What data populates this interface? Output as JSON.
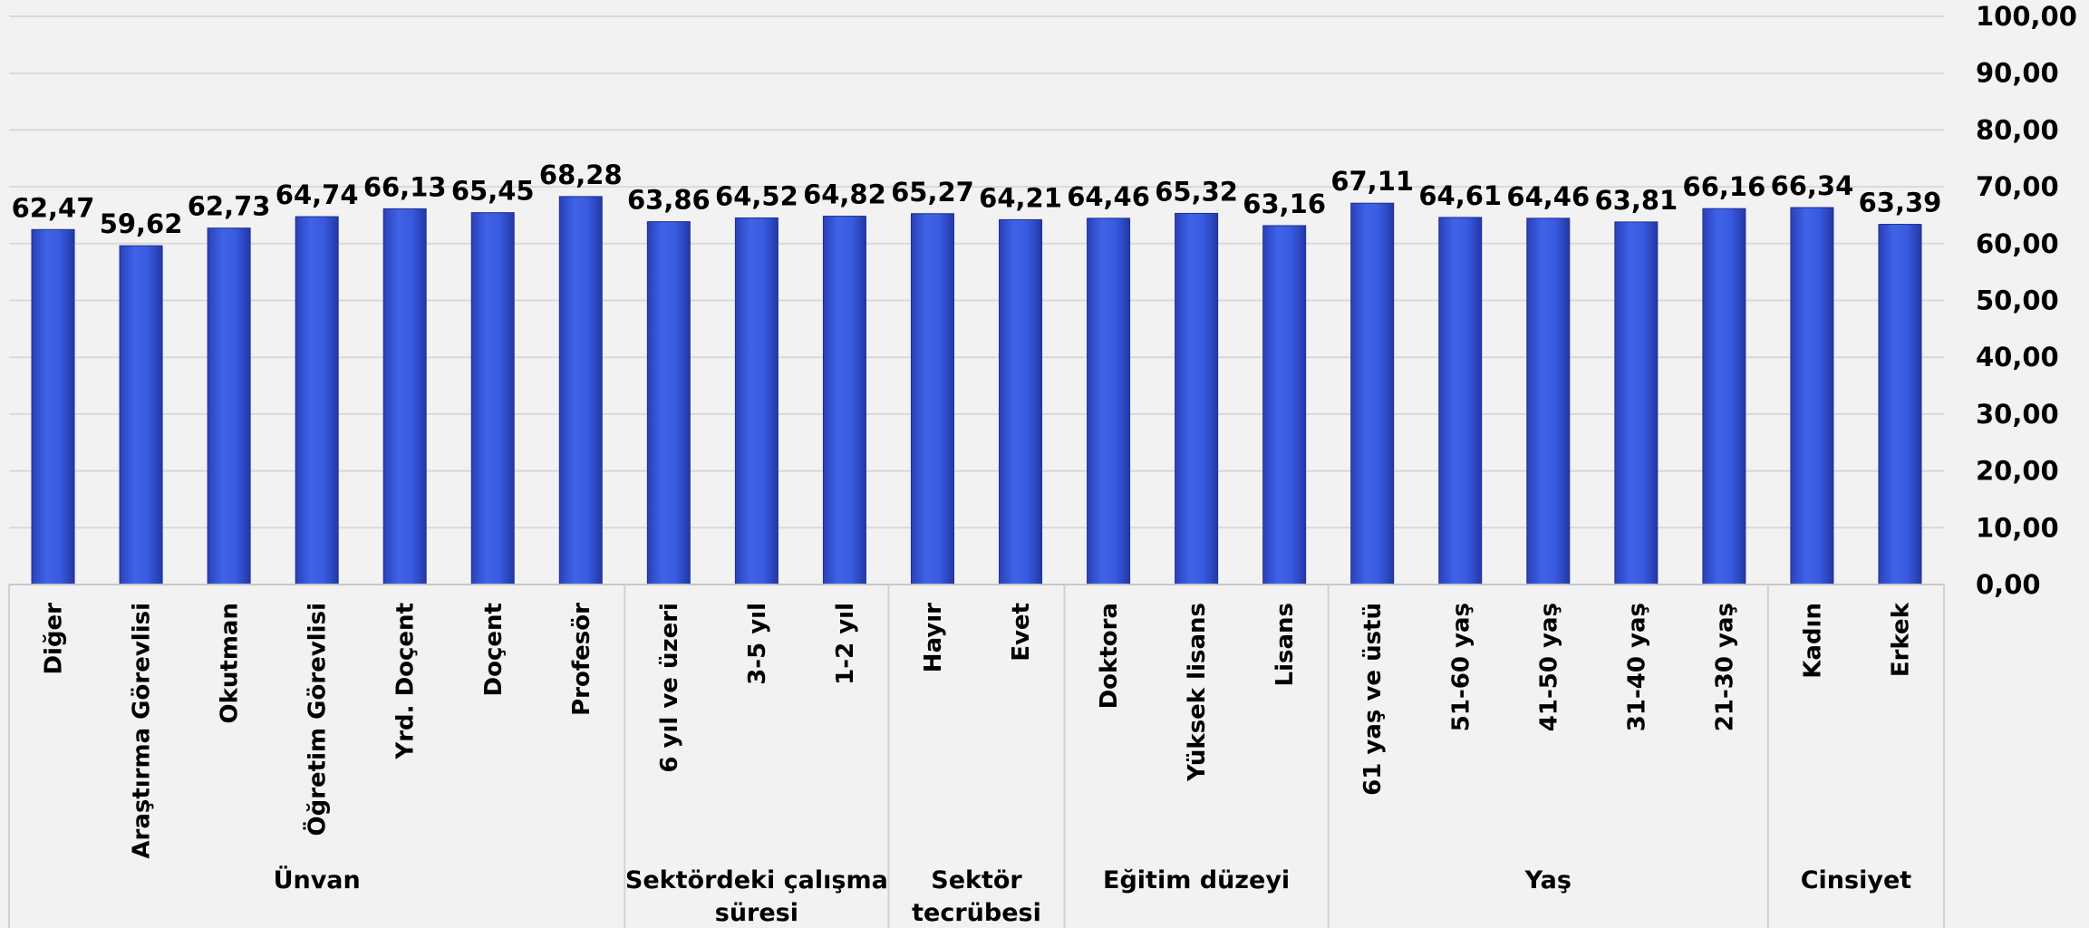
{
  "chart_data": {
    "type": "bar",
    "ylim": [
      0,
      100
    ],
    "y_ticks": [
      "0,00",
      "10,00",
      "20,00",
      "30,00",
      "40,00",
      "50,00",
      "60,00",
      "70,00",
      "80,00",
      "90,00",
      "100,00"
    ],
    "y_axis_position": "right",
    "grid": true,
    "bar_color": "#3355dd",
    "categories": [
      "Diğer",
      "Araştırma Görevlisi",
      "Okutman",
      "Öğretim Görevlisi",
      "Yrd. Doçent",
      "Doçent",
      "Profesör",
      "6 yıl ve üzeri",
      "3-5 yıl",
      "1-2 yıl",
      "Hayır",
      "Evet",
      "Doktora",
      "Yüksek lisans",
      "Lisans",
      "61 yaş ve üstü",
      "51-60 yaş",
      "41-50 yaş",
      "31-40 yaş",
      "21-30 yaş",
      "Kadın",
      "Erkek"
    ],
    "values": [
      62.47,
      59.62,
      62.73,
      64.74,
      66.13,
      65.45,
      68.28,
      63.86,
      64.52,
      64.82,
      65.27,
      64.21,
      64.46,
      65.32,
      63.16,
      67.11,
      64.61,
      64.46,
      63.81,
      66.16,
      66.34,
      63.39
    ],
    "value_labels": [
      "62,47",
      "59,62",
      "62,73",
      "64,74",
      "66,13",
      "65,45",
      "68,28",
      "63,86",
      "64,52",
      "64,82",
      "65,27",
      "64,21",
      "64,46",
      "65,32",
      "63,16",
      "67,11",
      "64,61",
      "64,46",
      "63,81",
      "66,16",
      "66,34",
      "63,39"
    ],
    "groups": [
      {
        "lines": [
          "Ünvan"
        ],
        "start": 0,
        "count": 7
      },
      {
        "lines": [
          "Sektördeki çalışma",
          "süresi"
        ],
        "start": 7,
        "count": 3
      },
      {
        "lines": [
          "Sektör",
          "tecrübesi"
        ],
        "start": 10,
        "count": 2
      },
      {
        "lines": [
          "Eğitim düzeyi"
        ],
        "start": 12,
        "count": 3
      },
      {
        "lines": [
          "Yaş"
        ],
        "start": 15,
        "count": 5
      },
      {
        "lines": [
          "Cinsiyet"
        ],
        "start": 20,
        "count": 2
      }
    ]
  }
}
